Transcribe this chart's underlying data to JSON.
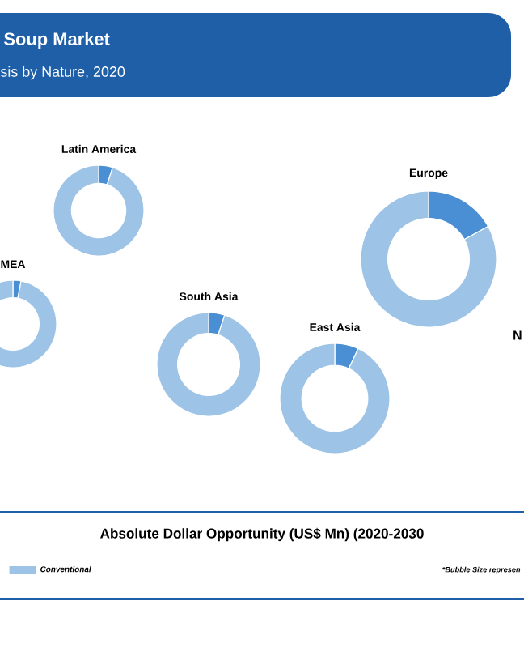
{
  "chart_data": [
    {
      "type": "other",
      "title": "Soup Market",
      "subtitle": "sis by Nature, 2020",
      "annotations": [
        "N",
        "Absolute Dollar Opportunity (US$ Mn) (2020-2030",
        "*Bubble Size represen"
      ]
    },
    {
      "type": "donut",
      "title": "Latin America",
      "categories": [
        null,
        "Conventional"
      ],
      "values": [
        5,
        95
      ],
      "colors": [
        "#4a8fd4",
        "#9dc3e6"
      ],
      "legend": "bottom left"
    },
    {
      "type": "donut",
      "title": "MEA",
      "categories": [
        null,
        null
      ],
      "values": [
        3,
        97
      ],
      "colors": [
        "#4a8fd4",
        "#9dc3e6"
      ]
    },
    {
      "type": "donut",
      "title": "South Asia",
      "categories": [
        null,
        null
      ],
      "values": [
        5,
        95
      ],
      "colors": [
        "#4a8fd4",
        "#9dc3e6"
      ]
    },
    {
      "type": "donut",
      "title": "East Asia",
      "categories": [
        null,
        null
      ],
      "values": [
        7,
        93
      ],
      "colors": [
        "#4a8fd4",
        "#9dc3e6"
      ]
    },
    {
      "type": "donut",
      "title": "Europe",
      "categories": [
        null,
        null
      ],
      "values": [
        17,
        83
      ],
      "colors": [
        "#4a8fd4",
        "#9dc3e6"
      ]
    }
  ]
}
